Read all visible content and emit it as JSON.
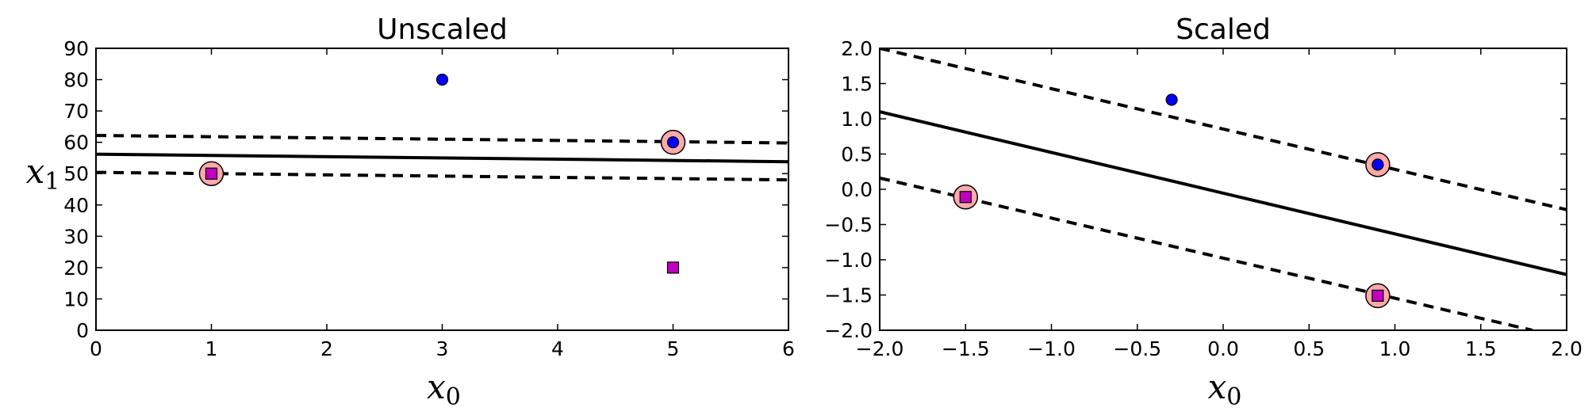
{
  "colors": {
    "class_positive": "#0000ff",
    "class_negative": "#bf00bf",
    "support_vector_fill": "#ffaaaa",
    "boundary": "#000000"
  },
  "chart_data": [
    {
      "type": "scatter",
      "title": "Unscaled",
      "xlabel": "x0",
      "ylabel": "x1",
      "xlim": [
        0,
        6
      ],
      "ylim": [
        0,
        90
      ],
      "xticks": [
        0,
        1,
        2,
        3,
        4,
        5,
        6
      ],
      "yticks": [
        0,
        10,
        20,
        30,
        40,
        50,
        60,
        70,
        80,
        90
      ],
      "xtick_labels": [
        "0",
        "1",
        "2",
        "3",
        "4",
        "5",
        "6"
      ],
      "ytick_labels": [
        "0",
        "10",
        "20",
        "30",
        "40",
        "50",
        "60",
        "70",
        "80",
        "90"
      ],
      "grid": false,
      "points": [
        {
          "x": 1,
          "y": 50,
          "class": 0,
          "marker": "square"
        },
        {
          "x": 5,
          "y": 20,
          "class": 0,
          "marker": "square"
        },
        {
          "x": 3,
          "y": 80,
          "class": 1,
          "marker": "circle"
        },
        {
          "x": 5,
          "y": 60,
          "class": 1,
          "marker": "circle"
        }
      ],
      "support_vectors": [
        {
          "x": 1,
          "y": 50
        },
        {
          "x": 5,
          "y": 60
        }
      ],
      "lines": [
        {
          "style": "solid",
          "points": [
            [
              0,
              56.2
            ],
            [
              6,
              53.8
            ]
          ]
        },
        {
          "style": "dashed",
          "points": [
            [
              0,
              62.2
            ],
            [
              6,
              59.8
            ]
          ]
        },
        {
          "style": "dashed",
          "points": [
            [
              0,
              50.4
            ],
            [
              6,
              48.0
            ]
          ]
        }
      ]
    },
    {
      "type": "scatter",
      "title": "Scaled",
      "xlabel": "x0",
      "ylabel": "",
      "xlim": [
        -2.0,
        2.0
      ],
      "ylim": [
        -2.0,
        2.0
      ],
      "xticks": [
        -2.0,
        -1.5,
        -1.0,
        -0.5,
        0.0,
        0.5,
        1.0,
        1.5,
        2.0
      ],
      "yticks": [
        -2.0,
        -1.5,
        -1.0,
        -0.5,
        0.0,
        0.5,
        1.0,
        1.5,
        2.0
      ],
      "xtick_labels": [
        "−2.0",
        "−1.5",
        "−1.0",
        "−0.5",
        "0.0",
        "0.5",
        "1.0",
        "1.5",
        "2.0"
      ],
      "ytick_labels": [
        "−2.0",
        "−1.5",
        "−1.0",
        "−0.5",
        "0.0",
        "0.5",
        "1.0",
        "1.5",
        "2.0"
      ],
      "grid": false,
      "points": [
        {
          "x": -1.5,
          "y": -0.11,
          "class": 0,
          "marker": "square"
        },
        {
          "x": 0.9,
          "y": -1.51,
          "class": 0,
          "marker": "square"
        },
        {
          "x": -0.3,
          "y": 1.27,
          "class": 1,
          "marker": "circle"
        },
        {
          "x": 0.9,
          "y": 0.35,
          "class": 1,
          "marker": "circle"
        }
      ],
      "support_vectors": [
        {
          "x": -1.5,
          "y": -0.11
        },
        {
          "x": 0.9,
          "y": -1.51
        },
        {
          "x": 0.9,
          "y": 0.35
        }
      ],
      "lines": [
        {
          "style": "solid",
          "points": [
            [
              -2.0,
              1.1
            ],
            [
              2.0,
              -1.21
            ]
          ]
        },
        {
          "style": "dashed",
          "points": [
            [
              -2.0,
              2.0
            ],
            [
              2.0,
              -0.29
            ]
          ]
        },
        {
          "style": "dashed",
          "points": [
            [
              -2.0,
              0.16
            ],
            [
              1.8,
              -2.0
            ]
          ]
        }
      ]
    }
  ]
}
